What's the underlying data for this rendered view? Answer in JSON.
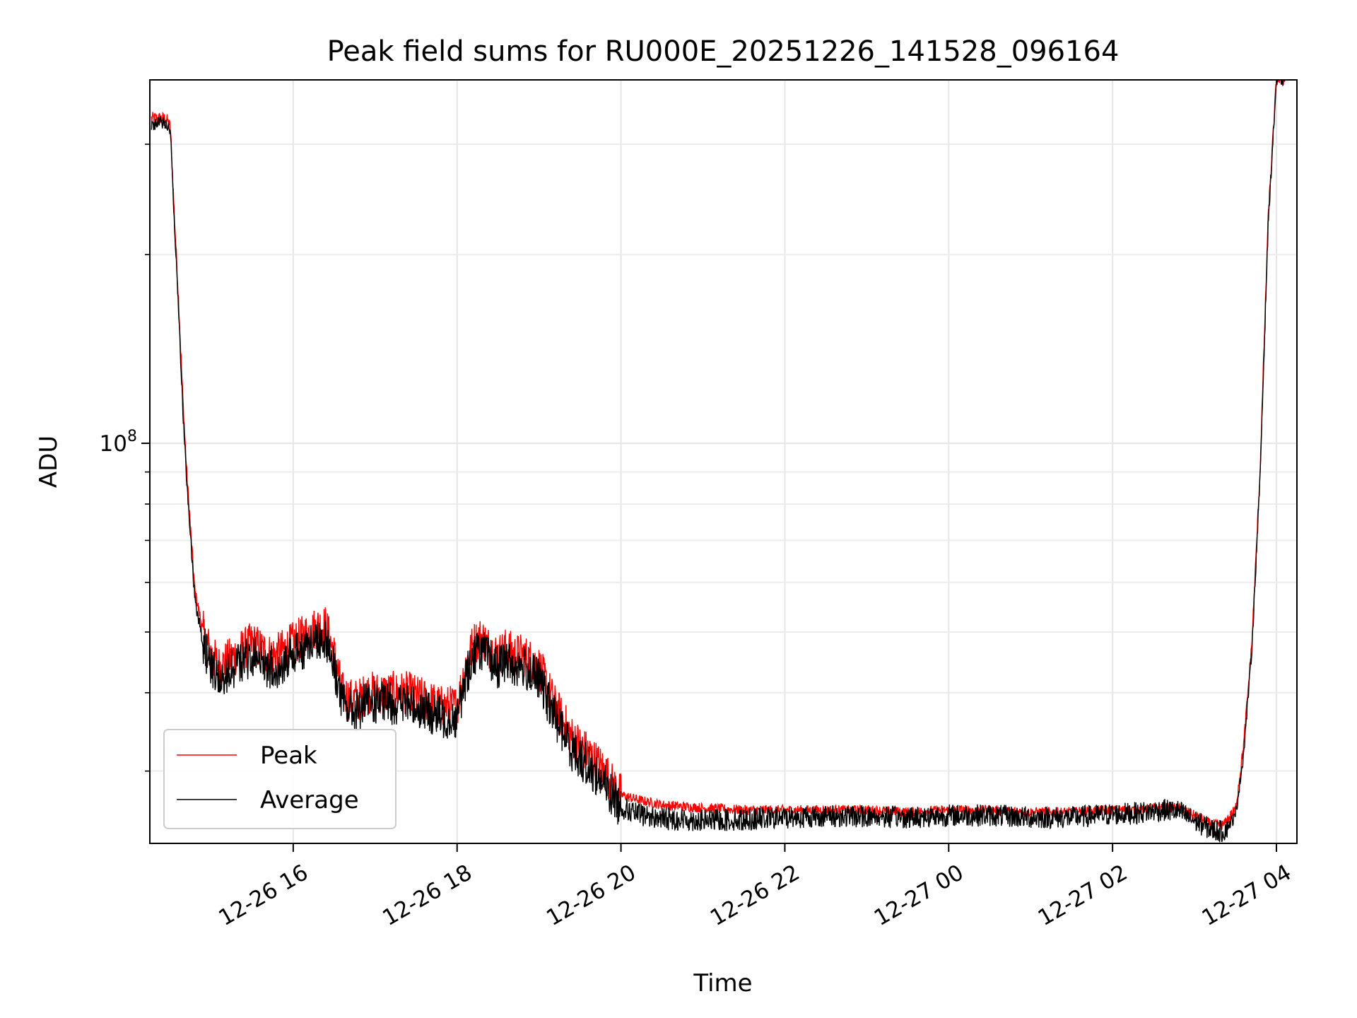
{
  "chart_data": {
    "type": "line",
    "title": "Peak field sums for RU000E_20251226_141528_096164",
    "xlabel": "Time",
    "ylabel": "ADU",
    "yscale": "log",
    "grid": true,
    "legend_position": "lower-left",
    "xlim_hours": [
      14.25,
      28.25
    ],
    "ylim": [
      23000000,
      380000000
    ],
    "x_ticks": [
      {
        "hours": 16,
        "label": "12-26 16"
      },
      {
        "hours": 18,
        "label": "12-26 18"
      },
      {
        "hours": 20,
        "label": "12-26 20"
      },
      {
        "hours": 22,
        "label": "12-26 22"
      },
      {
        "hours": 24,
        "label": "12-27 00"
      },
      {
        "hours": 26,
        "label": "12-27 02"
      },
      {
        "hours": 28,
        "label": "12-27 04"
      }
    ],
    "y_major_ticks": [
      {
        "value": 100000000,
        "base": "10",
        "exponent": "8"
      }
    ],
    "y_minor_ticks": [
      30000000,
      40000000,
      50000000,
      60000000,
      70000000,
      80000000,
      90000000,
      200000000,
      300000000
    ],
    "x_unit": "hours since 2025-12-26 00:00",
    "series": [
      {
        "name": "Peak",
        "color": "#ff0000",
        "x": [
          14.27,
          14.35,
          14.45,
          14.5,
          14.55,
          14.6,
          14.65,
          14.7,
          14.75,
          14.8,
          14.85,
          14.9,
          15.0,
          15.1,
          15.2,
          15.3,
          15.4,
          15.5,
          15.6,
          15.7,
          15.8,
          15.9,
          16.0,
          16.1,
          16.2,
          16.3,
          16.4,
          16.5,
          16.6,
          16.7,
          16.8,
          16.9,
          17.0,
          17.2,
          17.4,
          17.6,
          17.8,
          18.0,
          18.1,
          18.2,
          18.3,
          18.4,
          18.5,
          18.6,
          18.7,
          18.8,
          18.9,
          19.0,
          19.1,
          19.2,
          19.3,
          19.4,
          19.5,
          19.6,
          19.7,
          19.8,
          19.9,
          20.0,
          20.2,
          20.5,
          21.0,
          21.5,
          22.0,
          22.5,
          23.0,
          23.5,
          24.0,
          24.5,
          25.0,
          25.5,
          26.0,
          26.3,
          26.6,
          26.8,
          27.0,
          27.2,
          27.35,
          27.5,
          27.6,
          27.7,
          27.8,
          27.9,
          28.0,
          28.05,
          28.1
        ],
        "y": [
          330000000,
          330000000,
          330000000,
          320000000,
          230000000,
          170000000,
          120000000,
          90000000,
          72000000,
          58000000,
          54000000,
          50000000,
          46000000,
          44000000,
          45000000,
          46000000,
          47000000,
          48000000,
          47000000,
          46000000,
          46000000,
          47000000,
          48000000,
          49000000,
          50000000,
          51000000,
          51000000,
          46000000,
          40000000,
          39000000,
          39000000,
          40000000,
          40000000,
          40000000,
          40000000,
          39000000,
          38000000,
          38000000,
          44000000,
          48000000,
          49000000,
          47000000,
          46000000,
          47000000,
          46000000,
          46000000,
          45000000,
          44000000,
          41000000,
          38000000,
          36000000,
          34000000,
          33000000,
          32000000,
          31000000,
          30000000,
          28500000,
          27500000,
          27000000,
          26500000,
          26200000,
          26000000,
          26000000,
          26000000,
          26000000,
          25800000,
          26000000,
          26000000,
          25800000,
          25800000,
          26000000,
          26000000,
          26300000,
          26200000,
          25500000,
          24700000,
          24600000,
          26000000,
          33000000,
          48000000,
          90000000,
          230000000,
          380000000,
          380000000,
          380000000
        ]
      },
      {
        "name": "Average",
        "color": "#000000",
        "x": [
          14.27,
          14.35,
          14.45,
          14.5,
          14.55,
          14.6,
          14.65,
          14.7,
          14.75,
          14.8,
          14.85,
          14.9,
          15.0,
          15.1,
          15.2,
          15.3,
          15.4,
          15.5,
          15.6,
          15.7,
          15.8,
          15.9,
          16.0,
          16.1,
          16.2,
          16.3,
          16.4,
          16.5,
          16.6,
          16.7,
          16.8,
          16.9,
          17.0,
          17.2,
          17.4,
          17.6,
          17.8,
          18.0,
          18.1,
          18.2,
          18.3,
          18.4,
          18.5,
          18.6,
          18.7,
          18.8,
          18.9,
          19.0,
          19.1,
          19.2,
          19.3,
          19.4,
          19.5,
          19.6,
          19.7,
          19.8,
          19.9,
          20.0,
          20.2,
          20.5,
          21.0,
          21.5,
          22.0,
          22.5,
          23.0,
          23.5,
          24.0,
          24.5,
          25.0,
          25.5,
          26.0,
          26.3,
          26.6,
          26.8,
          27.0,
          27.2,
          27.35,
          27.5,
          27.6,
          27.7,
          27.8,
          27.9,
          28.0,
          28.05,
          28.1
        ],
        "y": [
          320000000,
          325000000,
          325000000,
          315000000,
          225000000,
          165000000,
          115000000,
          87000000,
          70000000,
          56000000,
          52000000,
          48000000,
          44000000,
          42000000,
          43000000,
          44000000,
          45000000,
          46000000,
          45000000,
          44000000,
          44000000,
          45000000,
          46000000,
          47000000,
          48000000,
          49000000,
          49000000,
          44000000,
          38500000,
          37500000,
          37500000,
          38500000,
          38500000,
          38500000,
          38500000,
          37500000,
          36500000,
          36500000,
          42000000,
          46000000,
          47000000,
          45000000,
          44000000,
          45000000,
          44000000,
          44000000,
          43000000,
          42000000,
          39000000,
          36500000,
          34500000,
          32500000,
          31500000,
          30500000,
          29500000,
          28500000,
          27300000,
          26300000,
          25600000,
          25200000,
          25000000,
          25100000,
          25300000,
          25400000,
          25400000,
          25300000,
          25500000,
          25500000,
          25300000,
          25300000,
          25600000,
          25700000,
          26000000,
          25900000,
          25000000,
          24200000,
          24000000,
          25400000,
          32000000,
          47000000,
          88000000,
          225000000,
          380000000,
          380000000,
          380000000
        ]
      }
    ]
  }
}
